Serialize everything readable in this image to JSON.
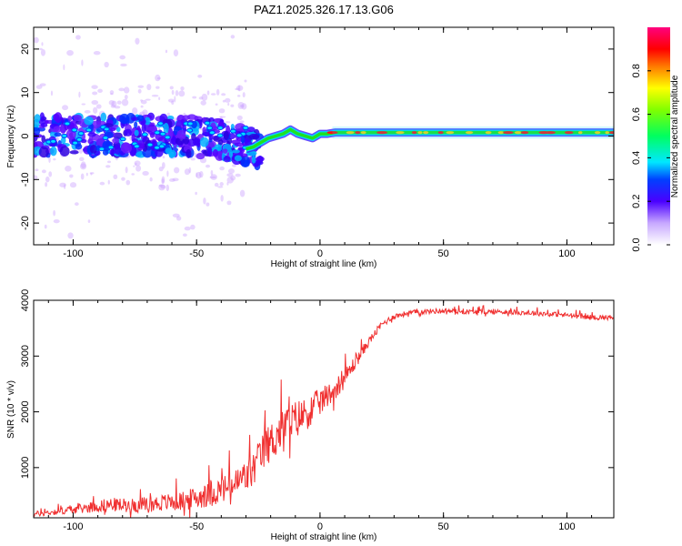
{
  "title": "PAZ1.2025.326.17.13.G06",
  "colors": {
    "snr_line": "#f03030",
    "ridge_strong": "#ff1010",
    "ridge_mid": "#20e020",
    "noise_core": "#3a00ff",
    "noise_halo": "#cba3ff"
  },
  "chart_data": [
    {
      "type": "heatmap",
      "title": "PAZ1.2025.326.17.13.G06",
      "xlabel": "Height of straight line (km)",
      "ylabel": "Frequency (Hz)",
      "xlim": [
        -116,
        119
      ],
      "ylim": [
        -25,
        25
      ],
      "xticks": [
        -100,
        -50,
        0,
        50,
        100
      ],
      "xtick_labels": [
        "-100",
        "-50",
        "0",
        "50",
        "100"
      ],
      "yticks": [
        20,
        10,
        0,
        -10,
        -20
      ],
      "ytick_labels": [
        "20",
        "10",
        "0",
        "-10",
        "-20"
      ],
      "ridge": {
        "x": [
          -30,
          -27,
          -24,
          -21,
          -18,
          -15,
          -12,
          -9,
          -6,
          -3,
          0,
          3,
          6,
          120
        ],
        "freq": [
          -3,
          -2.5,
          -1.5,
          -0.5,
          0,
          0.5,
          1.5,
          0.5,
          0,
          -0.5,
          0.5,
          0.5,
          0.8,
          0.8
        ]
      },
      "noise_region_x": [
        -116,
        -30
      ],
      "colorbar": {
        "label": "Normalized spectral amplitude",
        "range": [
          0,
          1
        ],
        "ticks": [
          0.0,
          0.2,
          0.4,
          0.6,
          0.8
        ],
        "tick_labels": [
          "0.0",
          "0.2",
          "0.4",
          "0.6",
          "0.8"
        ]
      }
    },
    {
      "type": "line",
      "xlabel": "Height of straight line (km)",
      "ylabel": "SNR (10 * v/v)",
      "xlim": [
        -116,
        119
      ],
      "ylim": [
        100,
        4000
      ],
      "xticks": [
        -100,
        -50,
        0,
        50,
        100
      ],
      "xtick_labels": [
        "-100",
        "-50",
        "0",
        "50",
        "100"
      ],
      "yticks": [
        1000,
        2000,
        3000,
        4000
      ],
      "ytick_labels": [
        "1000",
        "2000",
        "3000",
        "4000"
      ],
      "series": [
        {
          "name": "SNR",
          "x": [
            -116,
            -105,
            -95,
            -85,
            -75,
            -65,
            -55,
            -45,
            -35,
            -28,
            -22,
            -15,
            -10,
            -5,
            0,
            5,
            10,
            15,
            20,
            25,
            30,
            35,
            40,
            50,
            60,
            70,
            80,
            90,
            100,
            110,
            119
          ],
          "base": [
            150,
            200,
            250,
            300,
            280,
            320,
            350,
            450,
            600,
            800,
            1250,
            1600,
            1750,
            1900,
            2100,
            2300,
            2550,
            2900,
            3250,
            3550,
            3700,
            3750,
            3780,
            3800,
            3780,
            3780,
            3770,
            3750,
            3720,
            3680,
            3680
          ],
          "spread": [
            100,
            120,
            180,
            250,
            250,
            300,
            350,
            450,
            550,
            650,
            700,
            750,
            700,
            600,
            500,
            400,
            350,
            250,
            150,
            120,
            100,
            90,
            90,
            90,
            90,
            90,
            90,
            90,
            90,
            90,
            90
          ]
        }
      ]
    }
  ]
}
